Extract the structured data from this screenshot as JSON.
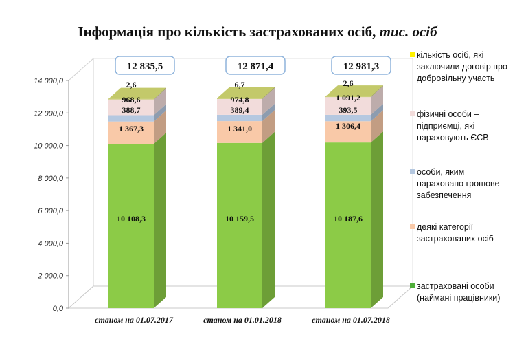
{
  "title": {
    "main": "Інформація про кількість застрахованих осіб, ",
    "unit": "тис. осіб"
  },
  "chart_data": {
    "type": "bar",
    "stacked": true,
    "style": "3d",
    "categories": [
      "станом на 01.07.2017",
      "станом на 01.01.2018",
      "станом на 01.07.2018"
    ],
    "series": [
      {
        "name": "застраховані особи (наймані працівники)",
        "values": [
          10108.3,
          10159.5,
          10187.6
        ],
        "labels": [
          "10 108,3",
          "10 159,5",
          "10 187,6"
        ],
        "color": "#8CCB47"
      },
      {
        "name": "деякі категорії застрахованих осіб",
        "values": [
          1367.3,
          1341.0,
          1306.4
        ],
        "labels": [
          "1 367,3",
          "1 341,0",
          "1 306,4"
        ],
        "color": "#F9C9A8"
      },
      {
        "name": "особи, яким нараховано грошове забезпечення",
        "values": [
          388.7,
          389.4,
          393.5
        ],
        "labels": [
          "388,7",
          "389,4",
          "393,5"
        ],
        "color": "#B5C8E0"
      },
      {
        "name": "фізичні особи – підприємці, які нараховують ЄСВ",
        "values": [
          968.6,
          974.8,
          1091.2
        ],
        "labels": [
          "968,6",
          "974,8",
          "1 091,2"
        ],
        "color": "#F2DCDB"
      },
      {
        "name": "кількість осіб, які заключили договір про добровільну участь",
        "values": [
          2.6,
          6.7,
          2.6
        ],
        "labels": [
          "2,6",
          "6,7",
          "2,6"
        ],
        "color": "#C3C96A"
      }
    ],
    "totals": [
      "12 835,5",
      "12 871,4",
      "12 981,3"
    ],
    "ylim": [
      0,
      14000
    ],
    "yticks": [
      "0,0",
      "2 000,0",
      "4 000,0",
      "6 000,0",
      "8 000,0",
      "10 000,0",
      "12 000,0",
      "14 000,0"
    ],
    "grid": false,
    "legend_position": "right"
  },
  "legend": [
    {
      "label": "кількість осіб, які заключили договір про добровільну участь",
      "color": "#FFF200"
    },
    {
      "label": "фізичні особи – підприємці, які нараховують ЄСВ",
      "color": "#F2DCDB"
    },
    {
      "label": "особи, яким нараховано грошове забезпечення",
      "color": "#B5C8E0"
    },
    {
      "label": "деякі категорії застрахованих осіб",
      "color": "#F9C9A8"
    },
    {
      "label": "застраховані особи (наймані працівники)",
      "color": "#4FAE3A"
    }
  ]
}
